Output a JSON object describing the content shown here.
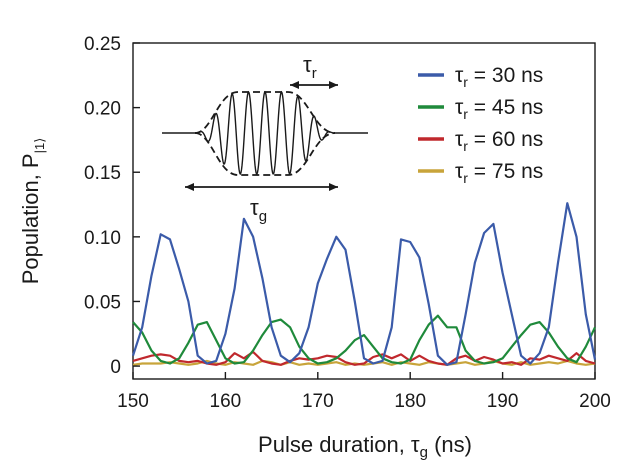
{
  "chart_data": {
    "type": "line",
    "xlabel": "Pulse duration, τg (ns)",
    "ylabel": "Population, P|1⟩",
    "xlim": [
      150,
      200
    ],
    "ylim": [
      -0.01,
      0.25
    ],
    "x_ticks": [
      "150",
      "160",
      "170",
      "180",
      "190",
      "200"
    ],
    "y_ticks": [
      "0",
      "0.05",
      "0.10",
      "0.15",
      "0.20",
      "0.25"
    ],
    "legend_position": "top-right",
    "x": [
      150,
      151,
      152,
      153,
      154,
      155,
      156,
      157,
      158,
      159,
      160,
      161,
      162,
      163,
      164,
      165,
      166,
      167,
      168,
      169,
      170,
      171,
      172,
      173,
      174,
      175,
      176,
      177,
      178,
      179,
      180,
      181,
      182,
      183,
      184,
      185,
      186,
      187,
      188,
      189,
      190,
      191,
      192,
      193,
      194,
      195,
      196,
      197,
      198,
      199,
      200
    ],
    "series": [
      {
        "name": "τr = 30 ns",
        "color": "#3b5ba9",
        "values": [
          0.008,
          0.03,
          0.07,
          0.102,
          0.098,
          0.075,
          0.05,
          0.008,
          0.002,
          0.004,
          0.025,
          0.06,
          0.114,
          0.1,
          0.068,
          0.03,
          0.008,
          0.003,
          0.01,
          0.03,
          0.064,
          0.083,
          0.1,
          0.09,
          0.05,
          0.006,
          0.002,
          0.004,
          0.03,
          0.098,
          0.096,
          0.084,
          0.048,
          0.008,
          0.001,
          0.003,
          0.04,
          0.08,
          0.103,
          0.11,
          0.072,
          0.04,
          0.008,
          0.002,
          0.01,
          0.03,
          0.08,
          0.126,
          0.1,
          0.04,
          0.005
        ]
      },
      {
        "name": "τr = 45 ns",
        "color": "#1f8a3b",
        "values": [
          0.034,
          0.026,
          0.012,
          0.004,
          0.002,
          0.006,
          0.018,
          0.032,
          0.034,
          0.02,
          0.006,
          0.002,
          0.003,
          0.012,
          0.024,
          0.034,
          0.036,
          0.03,
          0.015,
          0.006,
          0.002,
          0.003,
          0.006,
          0.012,
          0.02,
          0.024,
          0.015,
          0.006,
          0.003,
          0.002,
          0.005,
          0.02,
          0.032,
          0.039,
          0.03,
          0.03,
          0.012,
          0.004,
          0.002,
          0.003,
          0.006,
          0.015,
          0.024,
          0.032,
          0.034,
          0.026,
          0.015,
          0.006,
          0.003,
          0.015,
          0.03
        ]
      },
      {
        "name": "τr = 60 ns",
        "color": "#c0282d",
        "values": [
          0.004,
          0.006,
          0.008,
          0.009,
          0.008,
          0.004,
          0.003,
          0.004,
          0.002,
          0.001,
          0.003,
          0.01,
          0.006,
          0.011,
          0.004,
          0.002,
          0.001,
          0.004,
          0.006,
          0.005,
          0.006,
          0.008,
          0.007,
          0.003,
          0.001,
          0.002,
          0.007,
          0.009,
          0.006,
          0.009,
          0.004,
          0.008,
          0.004,
          0.002,
          0.001,
          0.006,
          0.008,
          0.004,
          0.007,
          0.005,
          0.002,
          0.003,
          0.001,
          0.006,
          0.005,
          0.008,
          0.006,
          0.004,
          0.01,
          0.004,
          0.002
        ]
      },
      {
        "name": "τr = 75 ns",
        "color": "#c8a43a",
        "values": [
          0.001,
          0.002,
          0.002,
          0.002,
          0.003,
          0.002,
          0.001,
          0.002,
          0.004,
          0.002,
          0.001,
          0.003,
          0.002,
          0.001,
          0.004,
          0.003,
          0.001,
          0.003,
          0.001,
          0.002,
          0.001,
          0.002,
          0.003,
          0.001,
          0.002,
          0.001,
          0.002,
          0.003,
          0.001,
          0.003,
          0.002,
          0.001,
          0.003,
          0.002,
          0.001,
          0.002,
          0.003,
          0.001,
          0.002,
          0.004,
          0.002,
          0.001,
          0.003,
          0.001,
          0.002,
          0.003,
          0.002,
          0.004,
          0.002,
          0.001,
          0.002
        ]
      }
    ],
    "inset": {
      "labels": {
        "rise_time": "τr",
        "gate_time": "τg"
      }
    }
  }
}
